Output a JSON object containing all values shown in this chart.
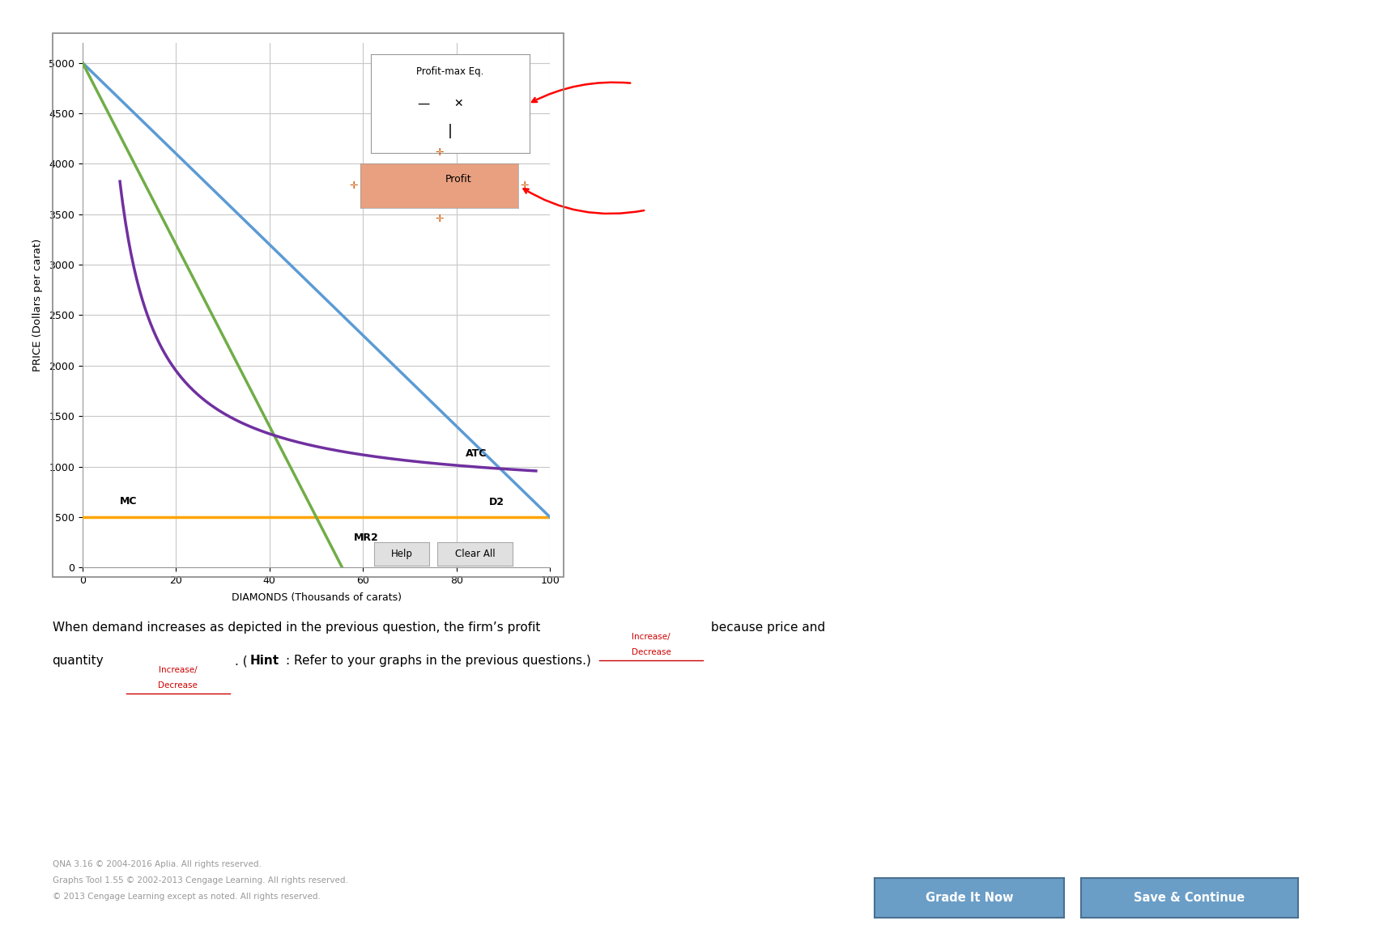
{
  "title_ylabel": "PRICE (Dollars per carat)",
  "xlabel": "DIAMONDS (Thousands of carats)",
  "xlim": [
    0,
    100
  ],
  "ylim": [
    0,
    5200
  ],
  "xticks": [
    0,
    20,
    40,
    60,
    80,
    100
  ],
  "yticks": [
    0,
    500,
    1000,
    1500,
    2000,
    2500,
    3000,
    3500,
    4000,
    4500,
    5000
  ],
  "mc_y": 500,
  "mc_color": "#FFA500",
  "mc_label": "MC",
  "d2_color": "#5B9BD5",
  "d2_label": "D2",
  "mr2_color": "#70AD47",
  "mr2_label": "MR2",
  "atc_color": "#7030A0",
  "atc_label": "ATC",
  "grid_color": "#C8C8C8",
  "bg_color": "#FFFFFF",
  "profit_max_label": "Profit-max Eq.",
  "profit_label": "Profit",
  "footer1": "QNA 3.16 © 2004-2016 Aplia. All rights reserved.",
  "footer2": "Graphs Tool 1.55 © 2002-2013 Cengage Learning. All rights reserved.",
  "footer3": "© 2013 Cengage Learning except as noted. All rights reserved."
}
